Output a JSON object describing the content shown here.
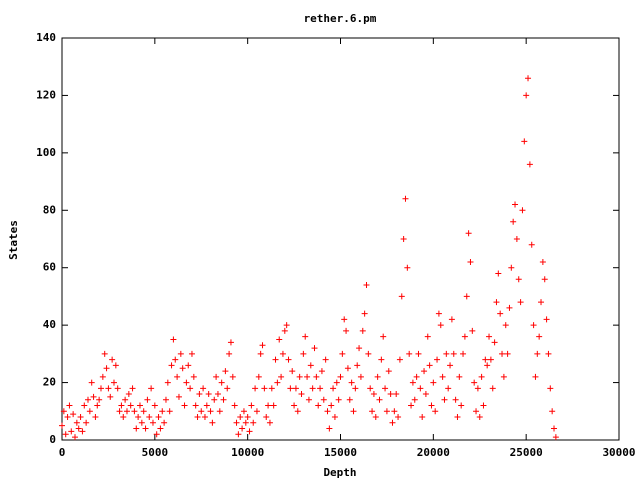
{
  "chart_data": {
    "type": "scatter",
    "title": "rether.6.pm",
    "x_label": "Depth",
    "y_label": "States",
    "xlim": [
      0,
      30000
    ],
    "ylim": [
      0,
      140
    ],
    "xticks": [
      0,
      5000,
      10000,
      15000,
      20000,
      25000,
      30000
    ],
    "yticks": [
      0,
      20,
      40,
      60,
      80,
      100,
      120,
      140
    ],
    "grid": false,
    "color": "#ff0000",
    "marker": "+",
    "x": [
      0,
      100,
      200,
      300,
      400,
      500,
      600,
      700,
      800,
      900,
      1000,
      1100,
      1200,
      1300,
      1400,
      1500,
      1600,
      1700,
      1800,
      1900,
      2000,
      2100,
      2200,
      2300,
      2400,
      2500,
      2600,
      2700,
      2800,
      2900,
      3000,
      3100,
      3200,
      3300,
      3400,
      3500,
      3600,
      3700,
      3800,
      3900,
      4000,
      4100,
      4200,
      4300,
      4400,
      4500,
      4600,
      4700,
      4800,
      4900,
      5000,
      5100,
      5200,
      5300,
      5400,
      5500,
      5600,
      5700,
      5800,
      5900,
      6000,
      6100,
      6200,
      6300,
      6400,
      6500,
      6600,
      6700,
      6800,
      6900,
      7000,
      7100,
      7200,
      7300,
      7400,
      7500,
      7600,
      7700,
      7800,
      7900,
      8000,
      8100,
      8200,
      8300,
      8400,
      8500,
      8600,
      8700,
      8800,
      8900,
      9000,
      9100,
      9200,
      9300,
      9400,
      9500,
      9600,
      9700,
      9800,
      9900,
      10000,
      10100,
      10200,
      10300,
      10400,
      10500,
      10600,
      10700,
      10800,
      10900,
      11000,
      11100,
      11200,
      11300,
      11400,
      11500,
      11600,
      11700,
      11800,
      11900,
      12000,
      12100,
      12200,
      12300,
      12400,
      12500,
      12600,
      12700,
      12800,
      12900,
      13000,
      13100,
      13200,
      13300,
      13400,
      13500,
      13600,
      13700,
      13800,
      13900,
      14000,
      14100,
      14200,
      14300,
      14400,
      14500,
      14600,
      14700,
      14800,
      14900,
      15000,
      15100,
      15200,
      15300,
      15400,
      15500,
      15600,
      15700,
      15800,
      15900,
      16000,
      16100,
      16200,
      16300,
      16400,
      16500,
      16600,
      16700,
      16800,
      16900,
      17000,
      17100,
      17200,
      17300,
      17400,
      17500,
      17600,
      17700,
      17800,
      17900,
      18000,
      18100,
      18200,
      18300,
      18400,
      18500,
      18600,
      18700,
      18800,
      18900,
      19000,
      19100,
      19200,
      19300,
      19400,
      19500,
      19600,
      19700,
      19800,
      19900,
      20000,
      20100,
      20200,
      20300,
      20400,
      20500,
      20600,
      20700,
      20800,
      20900,
      21000,
      21100,
      21200,
      21300,
      21400,
      21500,
      21600,
      21700,
      21800,
      21900,
      22000,
      22100,
      22200,
      22300,
      22400,
      22500,
      22600,
      22700,
      22800,
      22900,
      23000,
      23100,
      23200,
      23300,
      23400,
      23500,
      23600,
      23700,
      23800,
      23900,
      24000,
      24100,
      24200,
      24300,
      24400,
      24500,
      24600,
      24700,
      24800,
      24900,
      25000,
      25100,
      25200,
      25300,
      25400,
      25500,
      25600,
      25700,
      25800,
      25900,
      26000,
      26100,
      26200,
      26300,
      26400,
      26500,
      26600
    ],
    "values": [
      5,
      10,
      2,
      8,
      12,
      3,
      9,
      1,
      6,
      4,
      8,
      3,
      12,
      6,
      14,
      10,
      20,
      15,
      8,
      12,
      14,
      18,
      22,
      30,
      25,
      18,
      15,
      28,
      20,
      26,
      18,
      10,
      12,
      8,
      14,
      10,
      16,
      12,
      18,
      10,
      4,
      8,
      12,
      6,
      10,
      4,
      14,
      8,
      18,
      6,
      12,
      2,
      8,
      4,
      10,
      6,
      14,
      20,
      10,
      26,
      35,
      28,
      22,
      15,
      30,
      25,
      12,
      20,
      26,
      18,
      30,
      22,
      12,
      8,
      16,
      10,
      18,
      8,
      12,
      16,
      10,
      6,
      14,
      22,
      16,
      10,
      20,
      14,
      24,
      18,
      30,
      34,
      22,
      12,
      6,
      2,
      8,
      4,
      10,
      6,
      8,
      3,
      12,
      6,
      18,
      10,
      22,
      30,
      33,
      18,
      8,
      12,
      6,
      18,
      12,
      28,
      20,
      35,
      22,
      30,
      38,
      40,
      28,
      18,
      24,
      12,
      18,
      10,
      22,
      16,
      30,
      36,
      22,
      14,
      26,
      18,
      32,
      22,
      12,
      18,
      24,
      14,
      28,
      10,
      4,
      12,
      18,
      8,
      20,
      14,
      22,
      30,
      42,
      38,
      25,
      14,
      20,
      10,
      18,
      26,
      32,
      22,
      38,
      44,
      54,
      30,
      18,
      10,
      16,
      8,
      22,
      14,
      28,
      36,
      18,
      10,
      24,
      16,
      6,
      10,
      16,
      8,
      28,
      50,
      70,
      84,
      60,
      30,
      12,
      20,
      14,
      22,
      30,
      18,
      8,
      24,
      16,
      36,
      26,
      12,
      20,
      10,
      28,
      44,
      40,
      22,
      14,
      30,
      18,
      26,
      42,
      30,
      14,
      8,
      22,
      12,
      30,
      36,
      50,
      72,
      62,
      38,
      20,
      10,
      18,
      8,
      22,
      12,
      28,
      26,
      36,
      28,
      18,
      34,
      48,
      58,
      44,
      30,
      22,
      40,
      30,
      46,
      60,
      76,
      82,
      70,
      56,
      48,
      80,
      104,
      120,
      126,
      96,
      68,
      40,
      22,
      30,
      36,
      48,
      62,
      56,
      42,
      30,
      18,
      10,
      4,
      1
    ]
  }
}
